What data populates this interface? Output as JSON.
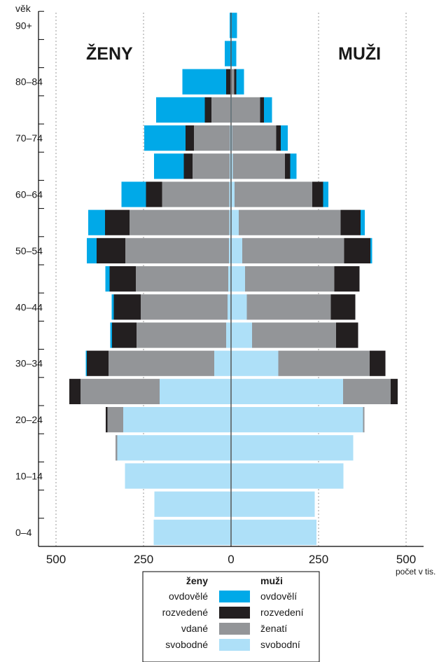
{
  "chart_data": {
    "type": "bar",
    "subtype": "population-pyramid",
    "y_axis_title": "věk",
    "x_unit_label": "počet v tis.",
    "left_title": "ŽENY",
    "right_title": "MUŽI",
    "x_ticks": [
      {
        "value": -500,
        "label": "500"
      },
      {
        "value": -250,
        "label": "250"
      },
      {
        "value": 0,
        "label": "0"
      },
      {
        "value": 250,
        "label": "250"
      },
      {
        "value": 500,
        "label": "500"
      }
    ],
    "xlim": [
      -500,
      500
    ],
    "grid": "vertical dashed",
    "age_groups": [
      "0–4",
      "5–9",
      "10–14",
      "15–19",
      "20–24",
      "25–29",
      "30–34",
      "35–39",
      "40–44",
      "45–49",
      "50–54",
      "55–59",
      "60–64",
      "65–69",
      "70–74",
      "75–79",
      "80–84",
      "85–89",
      "90+"
    ],
    "shown_age_labels": [
      "0–4",
      "10–14",
      "20–24",
      "30–34",
      "40–44",
      "50–54",
      "60–64",
      "70–74",
      "80–84",
      "90+"
    ],
    "stack_order": [
      "svobodne",
      "vdane",
      "rozvedene",
      "ovdovele"
    ],
    "colors": {
      "svobodne": "#aee0f8",
      "vdane": "#939598",
      "rozvedene": "#231f20",
      "ovdovele": "#00a9e8"
    },
    "women": {
      "svobodne": [
        221,
        219,
        303,
        325,
        308,
        204,
        48,
        14,
        10,
        8,
        6,
        5,
        5,
        4,
        3,
        2,
        1,
        0,
        0
      ],
      "vdane": [
        0,
        0,
        0,
        5,
        45,
        226,
        302,
        256,
        248,
        264,
        296,
        285,
        192,
        106,
        103,
        54,
        1,
        0,
        0
      ],
      "rozvedene": [
        0,
        0,
        0,
        0,
        5,
        32,
        62,
        70,
        77,
        75,
        82,
        70,
        46,
        25,
        24,
        19,
        12,
        0,
        0
      ],
      "ovdovele": [
        0,
        0,
        0,
        0,
        0,
        0,
        3,
        5,
        6,
        12,
        28,
        48,
        70,
        85,
        118,
        139,
        125,
        18,
        4
      ]
    },
    "men": {
      "svobodne": [
        244,
        239,
        321,
        349,
        377,
        320,
        135,
        60,
        45,
        40,
        32,
        22,
        10,
        5,
        3,
        2,
        1,
        0,
        0
      ],
      "vdane": [
        0,
        0,
        0,
        0,
        4,
        136,
        261,
        240,
        240,
        255,
        291,
        291,
        222,
        149,
        126,
        81,
        8,
        0,
        0
      ],
      "rozvedene": [
        0,
        0,
        0,
        0,
        0,
        20,
        45,
        63,
        70,
        72,
        75,
        57,
        31,
        15,
        13,
        11,
        6,
        0,
        0
      ],
      "ovdovele": [
        0,
        0,
        0,
        0,
        0,
        0,
        0,
        0,
        0,
        0,
        5,
        12,
        15,
        18,
        20,
        23,
        22,
        15,
        17
      ]
    },
    "legend": {
      "women_header": "ženy",
      "men_header": "muži",
      "women_labels": [
        "ovdovělé",
        "rozvedené",
        "vdané",
        "svobodné"
      ],
      "men_labels": [
        "ovdovělí",
        "rozvedení",
        "ženatí",
        "svobodní"
      ],
      "order": [
        "ovdovele",
        "rozvedene",
        "vdane",
        "svobodne"
      ]
    }
  }
}
